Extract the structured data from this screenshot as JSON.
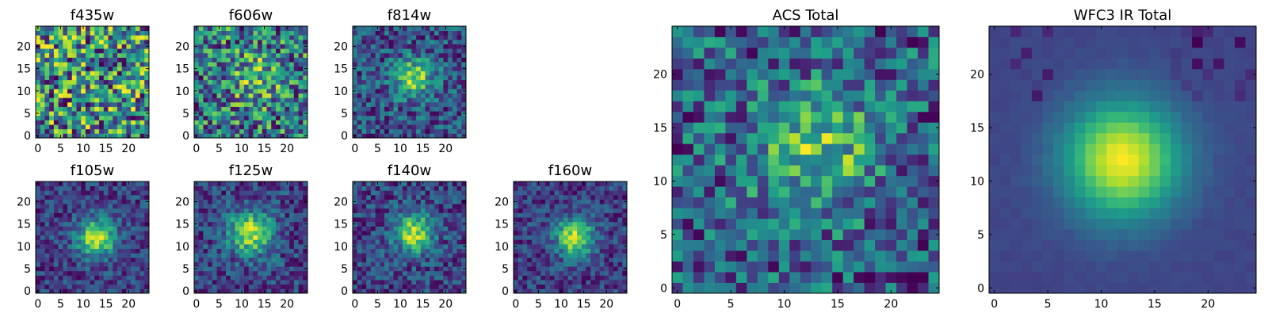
{
  "chart_data": [
    {
      "type": "heatmap",
      "title": "f435w",
      "colormap": "viridis",
      "xlim": [
        0,
        25
      ],
      "ylim": [
        0,
        25
      ],
      "xticks": [
        "0",
        "5",
        "10",
        "15",
        "20"
      ],
      "yticks": [
        "0",
        "5",
        "10",
        "15",
        "20"
      ],
      "pattern": "noise",
      "seed": 11,
      "peak": [
        12,
        12
      ],
      "strength": 0.0,
      "sigma": 4.0
    },
    {
      "type": "heatmap",
      "title": "f606w",
      "colormap": "viridis",
      "xlim": [
        0,
        25
      ],
      "ylim": [
        0,
        25
      ],
      "xticks": [
        "0",
        "5",
        "10",
        "15",
        "20"
      ],
      "yticks": [
        "0",
        "5",
        "10",
        "15",
        "20"
      ],
      "pattern": "noise",
      "seed": 23,
      "peak": [
        13,
        13
      ],
      "strength": 0.15,
      "sigma": 4.0
    },
    {
      "type": "heatmap",
      "title": "f814w",
      "colormap": "viridis",
      "xlim": [
        0,
        25
      ],
      "ylim": [
        0,
        25
      ],
      "xticks": [
        "0",
        "5",
        "10",
        "15",
        "20"
      ],
      "yticks": [
        "0",
        "5",
        "10",
        "15",
        "20"
      ],
      "pattern": "weak-source",
      "seed": 37,
      "peak": [
        13,
        13
      ],
      "strength": 0.45,
      "sigma": 3.0
    },
    {
      "type": "heatmap",
      "title": "f105w",
      "colormap": "viridis",
      "xlim": [
        0,
        25
      ],
      "ylim": [
        0,
        25
      ],
      "xticks": [
        "0",
        "5",
        "10",
        "15",
        "20"
      ],
      "yticks": [
        "0",
        "5",
        "10",
        "15",
        "20"
      ],
      "pattern": "source",
      "seed": 41,
      "peak": [
        13,
        12
      ],
      "strength": 0.7,
      "sigma": 3.0
    },
    {
      "type": "heatmap",
      "title": "f125w",
      "colormap": "viridis",
      "xlim": [
        0,
        25
      ],
      "ylim": [
        0,
        25
      ],
      "xticks": [
        "0",
        "5",
        "10",
        "15",
        "20"
      ],
      "yticks": [
        "0",
        "5",
        "10",
        "15",
        "20"
      ],
      "pattern": "source",
      "seed": 53,
      "peak": [
        12,
        13
      ],
      "strength": 0.6,
      "sigma": 3.5
    },
    {
      "type": "heatmap",
      "title": "f140w",
      "colormap": "viridis",
      "xlim": [
        0,
        25
      ],
      "ylim": [
        0,
        25
      ],
      "xticks": [
        "0",
        "5",
        "10",
        "15",
        "20"
      ],
      "yticks": [
        "0",
        "5",
        "10",
        "15",
        "20"
      ],
      "pattern": "source",
      "seed": 67,
      "peak": [
        13,
        13
      ],
      "strength": 0.6,
      "sigma": 3.0
    },
    {
      "type": "heatmap",
      "title": "f160w",
      "colormap": "viridis",
      "xlim": [
        0,
        25
      ],
      "ylim": [
        0,
        25
      ],
      "xticks": [
        "0",
        "5",
        "10",
        "15",
        "20"
      ],
      "yticks": [
        "0",
        "5",
        "10",
        "15",
        "20"
      ],
      "pattern": "source",
      "seed": 71,
      "peak": [
        13,
        12
      ],
      "strength": 0.7,
      "sigma": 3.0
    },
    {
      "type": "heatmap",
      "title": "ACS Total",
      "colormap": "viridis",
      "xlim": [
        0,
        25
      ],
      "ylim": [
        0,
        25
      ],
      "xticks": [
        "0",
        "5",
        "10",
        "15",
        "20"
      ],
      "yticks": [
        "0",
        "5",
        "10",
        "15",
        "20"
      ],
      "pattern": "noisy-source",
      "seed": 83,
      "peak": [
        13,
        13
      ],
      "strength": 0.3,
      "sigma": 4.0
    },
    {
      "type": "heatmap",
      "title": "WFC3 IR Total",
      "colormap": "viridis",
      "xlim": [
        0,
        25
      ],
      "ylim": [
        0,
        25
      ],
      "xticks": [
        "0",
        "5",
        "10",
        "15",
        "20"
      ],
      "yticks": [
        "0",
        "5",
        "10",
        "15",
        "20"
      ],
      "pattern": "smooth-source",
      "seed": 97,
      "peak": [
        12,
        12
      ],
      "strength": 0.85,
      "sigma": 3.8
    }
  ]
}
